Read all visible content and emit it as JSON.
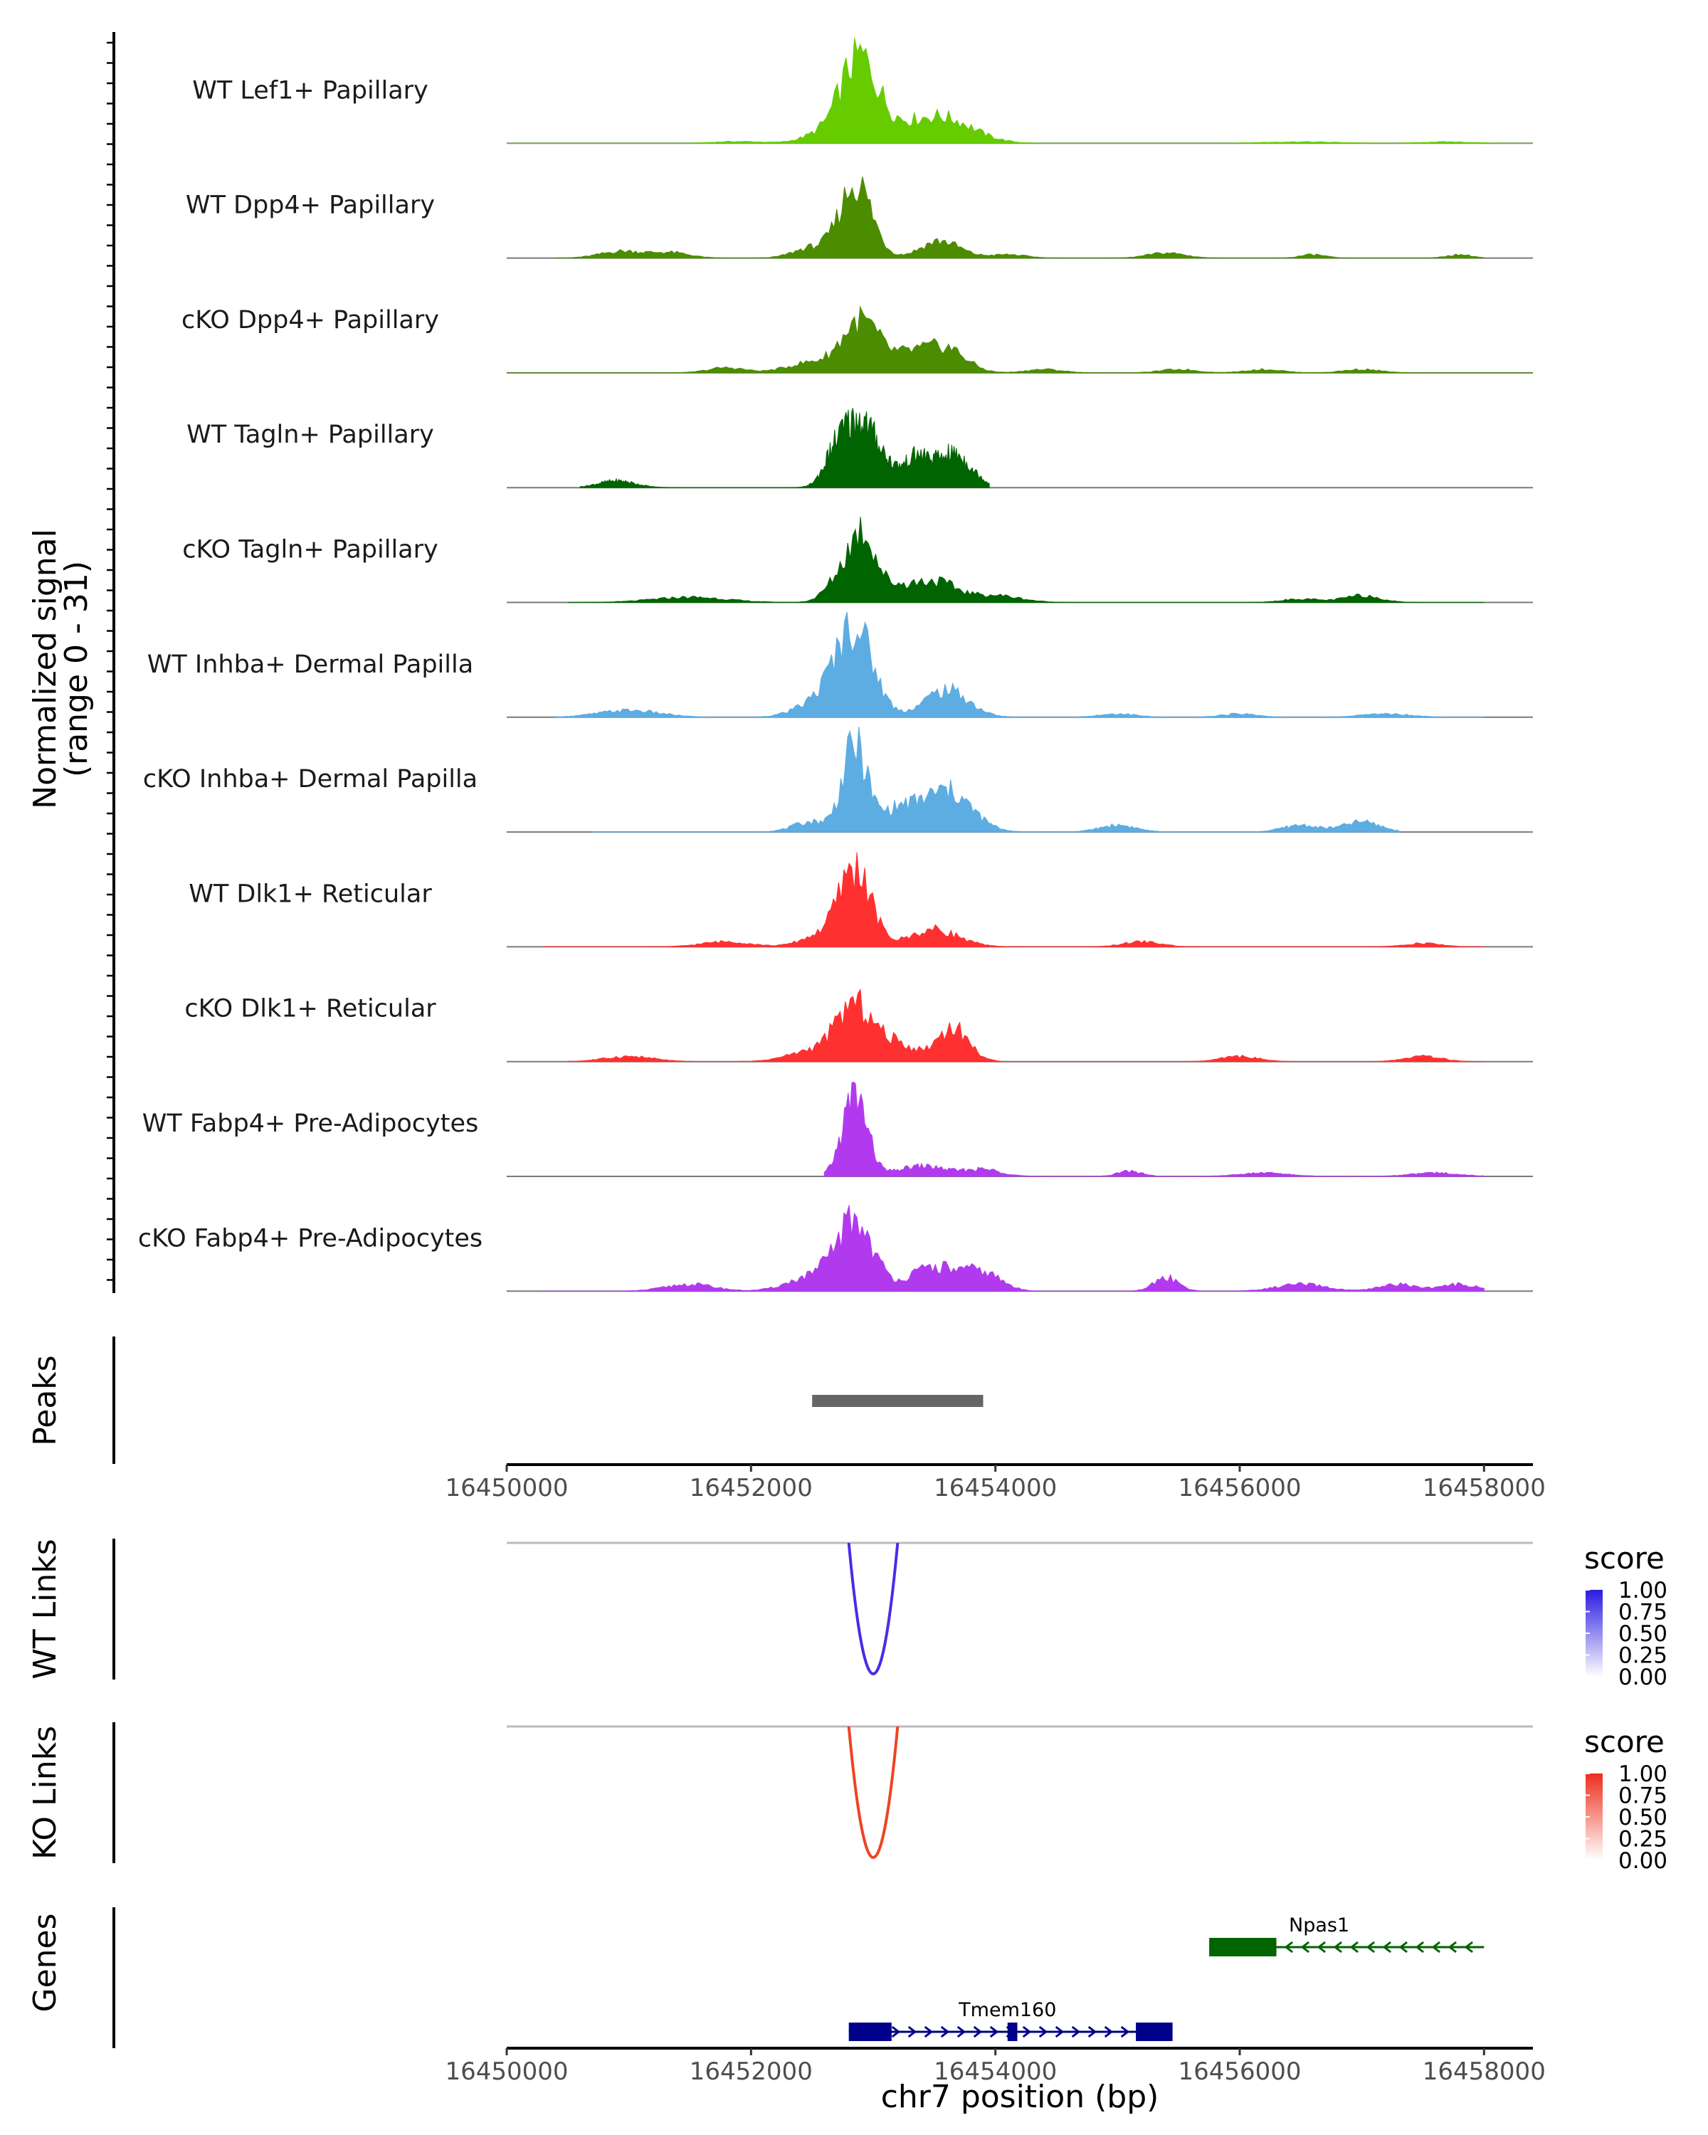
{
  "chart_data": {
    "type": "area",
    "title": "",
    "ylabel_line1": "Normalized signal",
    "ylabel_line2": "(range 0 - 31)",
    "ylim": [
      0,
      31
    ],
    "xlim": [
      16450000,
      16458400
    ],
    "xlabel": "chr7 position (bp)",
    "x_ticks": [
      16450000,
      16452000,
      16454000,
      16456000,
      16458000
    ],
    "x_tick_labels": [
      "16450000",
      "16452000",
      "16454000",
      "16456000",
      "16458000"
    ],
    "tracks": [
      {
        "name": "WT Lef1+ Papillary",
        "color": "#66CC00",
        "range": [
          16450000,
          16458400
        ],
        "peaks": [
          [
            16452880,
            23,
            150
          ],
          [
            16453600,
            6,
            240
          ],
          [
            16453200,
            4,
            300
          ],
          [
            16452550,
            2,
            150
          ],
          [
            16451900,
            0.5,
            200
          ],
          [
            16456500,
            0.4,
            300
          ],
          [
            16457700,
            0.4,
            200
          ]
        ]
      },
      {
        "name": "WT Dpp4+ Papillary",
        "color": "#4C8C00",
        "range": [
          16450400,
          16458000
        ],
        "peaks": [
          [
            16452860,
            22,
            130
          ],
          [
            16453550,
            5,
            160
          ],
          [
            16452500,
            3,
            150
          ],
          [
            16450950,
            2,
            180
          ],
          [
            16451350,
            1.5,
            150
          ],
          [
            16455400,
            1.5,
            150
          ],
          [
            16456600,
            1,
            100
          ],
          [
            16457800,
            1,
            100
          ],
          [
            16454100,
            1,
            150
          ]
        ]
      },
      {
        "name": "cKO Dpp4+ Papillary",
        "color": "#4C8C00",
        "range": [
          16450000,
          16458400
        ],
        "peaks": [
          [
            16452900,
            15,
            150
          ],
          [
            16453600,
            7,
            160
          ],
          [
            16453300,
            5,
            150
          ],
          [
            16452500,
            3,
            200
          ],
          [
            16451800,
            1.5,
            150
          ],
          [
            16454400,
            1,
            150
          ],
          [
            16455500,
            1,
            150
          ],
          [
            16456200,
            1,
            150
          ],
          [
            16457000,
            1,
            150
          ]
        ]
      },
      {
        "name": "WT Tagln+ Papillary",
        "color": "#006400",
        "range": [
          16450600,
          16453950
        ],
        "peaks": [
          [
            16452900,
            18,
            120
          ],
          [
            16452700,
            10,
            100
          ],
          [
            16453350,
            8,
            100
          ],
          [
            16453650,
            10,
            150
          ],
          [
            16453100,
            5,
            100
          ],
          [
            16450900,
            2,
            150
          ]
        ]
      },
      {
        "name": "cKO Tagln+ Papillary",
        "color": "#006400",
        "range": [
          16450500,
          16458000
        ],
        "peaks": [
          [
            16452920,
            17,
            100
          ],
          [
            16452750,
            8,
            120
          ],
          [
            16453500,
            6,
            180
          ],
          [
            16453150,
            4,
            150
          ],
          [
            16454000,
            2,
            200
          ],
          [
            16451500,
            1.5,
            300
          ],
          [
            16457000,
            2,
            150
          ],
          [
            16456500,
            1,
            150
          ]
        ]
      },
      {
        "name": "WT Inhba+ Dermal Papilla",
        "color": "#5DADE2",
        "range": [
          16450400,
          16458000
        ],
        "peaks": [
          [
            16452850,
            25,
            150
          ],
          [
            16453600,
            8,
            180
          ],
          [
            16452600,
            5,
            200
          ],
          [
            16451000,
            2,
            250
          ],
          [
            16455000,
            1,
            150
          ],
          [
            16457200,
            1,
            200
          ],
          [
            16456000,
            1,
            150
          ]
        ]
      },
      {
        "name": "cKO Inhba+ Dermal Papilla",
        "color": "#5DADE2",
        "range": [
          16450700,
          16457300
        ],
        "peaks": [
          [
            16452850,
            25,
            100
          ],
          [
            16453600,
            12,
            200
          ],
          [
            16453200,
            6,
            150
          ],
          [
            16452500,
            3,
            150
          ],
          [
            16455000,
            2,
            150
          ],
          [
            16457000,
            3,
            150
          ],
          [
            16456500,
            2,
            150
          ]
        ]
      },
      {
        "name": "WT Dlk1+ Reticular",
        "color": "#FF3030",
        "range": [
          16450300,
          16458000
        ],
        "peaks": [
          [
            16452850,
            23,
            130
          ],
          [
            16453500,
            5,
            200
          ],
          [
            16452550,
            3,
            150
          ],
          [
            16451800,
            1.5,
            200
          ],
          [
            16455200,
            1.5,
            150
          ],
          [
            16457500,
            1,
            150
          ]
        ]
      },
      {
        "name": "cKO Dlk1+ Reticular",
        "color": "#FF3030",
        "range": [
          16450500,
          16458000
        ],
        "peaks": [
          [
            16452850,
            16,
            150
          ],
          [
            16453650,
            10,
            130
          ],
          [
            16453200,
            5,
            150
          ],
          [
            16452500,
            3,
            200
          ],
          [
            16451000,
            1.5,
            200
          ],
          [
            16456000,
            1.5,
            150
          ],
          [
            16457500,
            1.5,
            150
          ]
        ]
      },
      {
        "name": "WT Fabp4+ Pre-Adipocytes",
        "color": "#B23AEE",
        "range": [
          16452600,
          16458000
        ],
        "peaks": [
          [
            16452850,
            24,
            100
          ],
          [
            16453400,
            3,
            200
          ],
          [
            16453900,
            2,
            150
          ],
          [
            16455100,
            1.5,
            100
          ],
          [
            16456200,
            1,
            200
          ],
          [
            16457600,
            1,
            200
          ]
        ]
      },
      {
        "name": "cKO Fabp4+ Pre-Adipocytes",
        "color": "#B23AEE",
        "range": [
          16450300,
          16458000
        ],
        "peaks": [
          [
            16452850,
            20,
            150
          ],
          [
            16453500,
            7,
            200
          ],
          [
            16453900,
            5,
            150
          ],
          [
            16452500,
            4,
            200
          ],
          [
            16455400,
            4,
            100
          ],
          [
            16451500,
            2,
            200
          ],
          [
            16456500,
            2,
            200
          ],
          [
            16457300,
            2,
            150
          ],
          [
            16457800,
            2,
            150
          ]
        ]
      }
    ],
    "peaks_track": {
      "label": "Peaks",
      "start": 16452500,
      "end": 16453900,
      "color": "#666666"
    },
    "links": [
      {
        "label": "WT Links",
        "start": 16452800,
        "end": 16453200,
        "color": "#4B2BE8",
        "legend_title": "score",
        "legend_ticks": [
          "1.00",
          "0.75",
          "0.50",
          "0.25",
          "0.00"
        ],
        "legend_color_top": "#2A1BE0"
      },
      {
        "label": "KO Links",
        "start": 16452800,
        "end": 16453200,
        "color": "#EE4422",
        "legend_title": "score",
        "legend_ticks": [
          "1.00",
          "0.75",
          "0.50",
          "0.25",
          "0.00"
        ],
        "legend_color_top": "#EE2E1C"
      }
    ],
    "genes_label": "Genes",
    "genes": [
      {
        "name": "Npas1",
        "color": "#006400",
        "start": 16455750,
        "end": 16458000,
        "strand": "-",
        "exons": [
          [
            16455750,
            16456300
          ]
        ]
      },
      {
        "name": "Tmem160",
        "color": "#00008B",
        "start": 16452800,
        "end": 16455450,
        "strand": "+",
        "exons": [
          [
            16452800,
            16453150
          ],
          [
            16454100,
            16454180
          ],
          [
            16455150,
            16455450
          ]
        ]
      }
    ]
  }
}
